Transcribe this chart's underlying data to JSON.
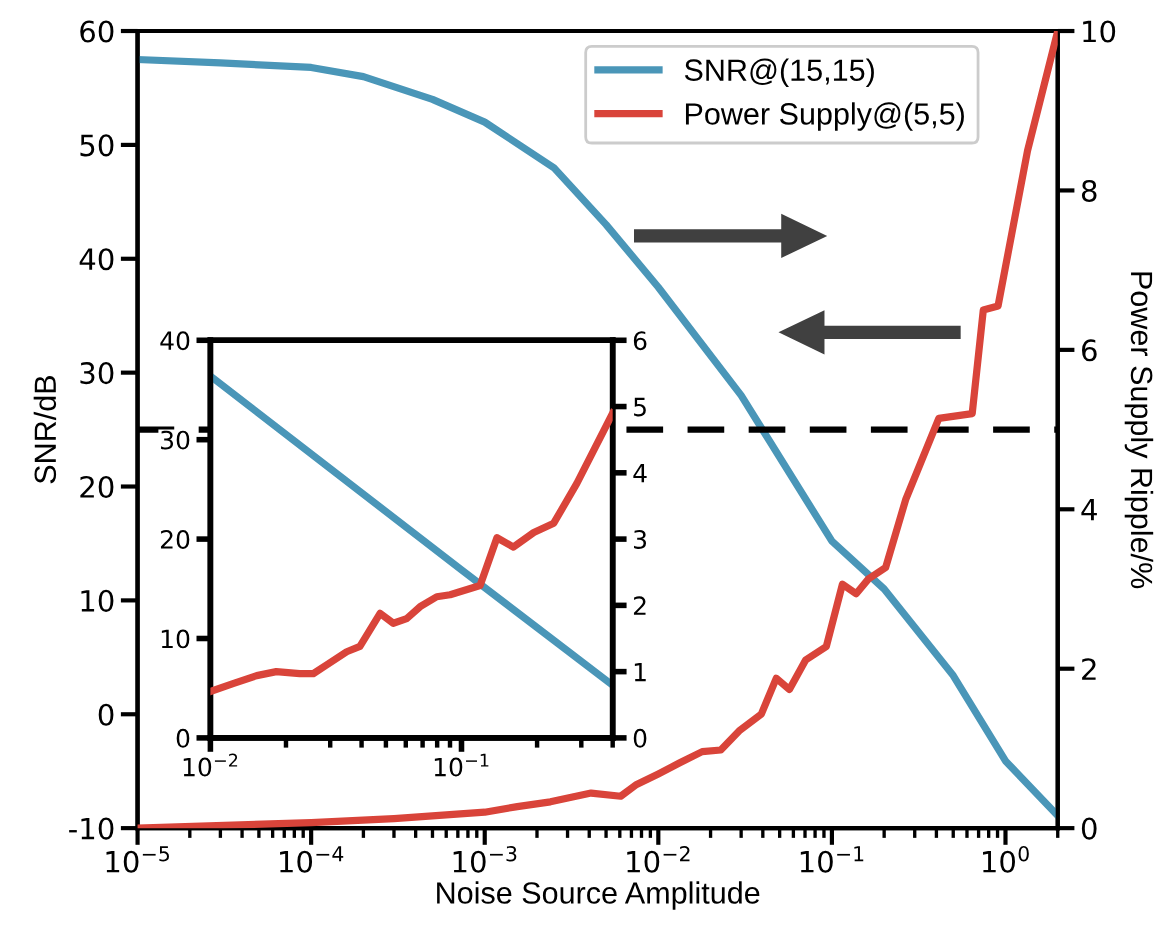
{
  "chart_data": [
    {
      "type": "line",
      "xlabel": "Noise Source Amplitude",
      "ylabel": "SNR/dB",
      "y2label": "Power Supply Ripple/%",
      "log": "x",
      "grid": false,
      "legend": "top right",
      "marker": "none",
      "line_style": "solid",
      "xlim": [
        1e-05,
        2
      ],
      "xticks": [
        {
          "value": 1e-05,
          "label": "10$^{−5}$"
        },
        {
          "value": 0.0001,
          "label": "10$^{−4}$"
        },
        {
          "value": 0.001,
          "label": "10$^{−3}$"
        },
        {
          "value": 0.01,
          "label": "10$^{−2}$"
        },
        {
          "value": 0.1,
          "label": "10$^{−1}$"
        },
        {
          "value": 1,
          "label": "10$^{0}$"
        }
      ],
      "ylim": [
        -10,
        60
      ],
      "yticks": [
        -10,
        0,
        10,
        20,
        30,
        40,
        50,
        60
      ],
      "y2lim": [
        0,
        10
      ],
      "y2ticks": [
        0,
        2,
        4,
        6,
        8,
        10
      ],
      "ref_lines": [
        {
          "axis": "y2",
          "value": 5,
          "line_style": "dashed",
          "color": "#000000"
        }
      ],
      "series": [
        {
          "name": "SNR@(15,15)",
          "color": "#4a96b8",
          "x": [
            1e-05,
            3e-05,
            0.0001,
            0.0002,
            0.0005,
            0.001,
            0.0025,
            0.005,
            0.01,
            0.03,
            0.1,
            0.2,
            0.5,
            1,
            2
          ],
          "values": [
            57.5,
            57.2,
            56.8,
            56,
            54,
            52,
            48,
            43,
            37.5,
            28,
            15.2,
            11,
            3.4,
            -4.1,
            -8.9
          ]
        },
        {
          "name": "Power Supply@(5,5)",
          "color": "#d9443a",
          "axis": "y2",
          "x": [
            1e-05,
            0.0001,
            0.0003,
            0.001,
            0.00154,
            0.00239,
            0.0041,
            0.00607,
            0.0074,
            0.01,
            0.0133,
            0.0179,
            0.0229,
            0.0292,
            0.0392,
            0.0478,
            0.0569,
            0.0706,
            0.0929,
            0.115,
            0.138,
            0.163,
            0.204,
            0.266,
            0.413,
            0.643,
            0.745,
            0.906,
            1.34,
            2
          ],
          "values": [
            0,
            0.07,
            0.12,
            0.2,
            0.27,
            0.33,
            0.44,
            0.4,
            0.54,
            0.68,
            0.82,
            0.96,
            0.98,
            1.22,
            1.43,
            1.88,
            1.74,
            2.11,
            2.28,
            3.06,
            2.94,
            3.13,
            3.27,
            4.12,
            5.14,
            5.2,
            6.5,
            6.55,
            8.5,
            10
          ]
        }
      ]
    },
    {
      "type": "line",
      "log": "x",
      "grid": false,
      "marker": "none",
      "line_style": "solid",
      "xlim": [
        0.01,
        0.4
      ],
      "xticks": [
        {
          "value": 0.01,
          "label": "10$^{−2}$"
        },
        {
          "value": 0.1,
          "label": "10$^{−1}$"
        }
      ],
      "ylim": [
        0,
        40
      ],
      "yticks": [
        0,
        10,
        20,
        30,
        40
      ],
      "y2lim": [
        0,
        6
      ],
      "y2ticks": [
        0,
        1,
        2,
        3,
        4,
        5,
        6
      ],
      "series": [
        {
          "color": "#4a96b8",
          "x": [
            0.01,
            0.1,
            0.4
          ],
          "values": [
            36.4,
            16.9,
            5.3
          ]
        },
        {
          "color": "#d9443a",
          "axis": "y2",
          "x": [
            0.01,
            0.0123,
            0.0153,
            0.0183,
            0.0227,
            0.0257,
            0.029,
            0.0349,
            0.0394,
            0.0474,
            0.0535,
            0.0605,
            0.0684,
            0.0797,
            0.0901,
            0.1186,
            0.1384,
            0.161,
            0.194,
            0.233,
            0.288,
            0.4
          ],
          "values": [
            0.7,
            0.82,
            0.94,
            1.0,
            0.97,
            0.97,
            1.1,
            1.3,
            1.38,
            1.88,
            1.73,
            1.8,
            1.98,
            2.13,
            2.16,
            2.3,
            3.02,
            2.88,
            3.1,
            3.24,
            3.84,
            4.9
          ]
        }
      ]
    }
  ]
}
